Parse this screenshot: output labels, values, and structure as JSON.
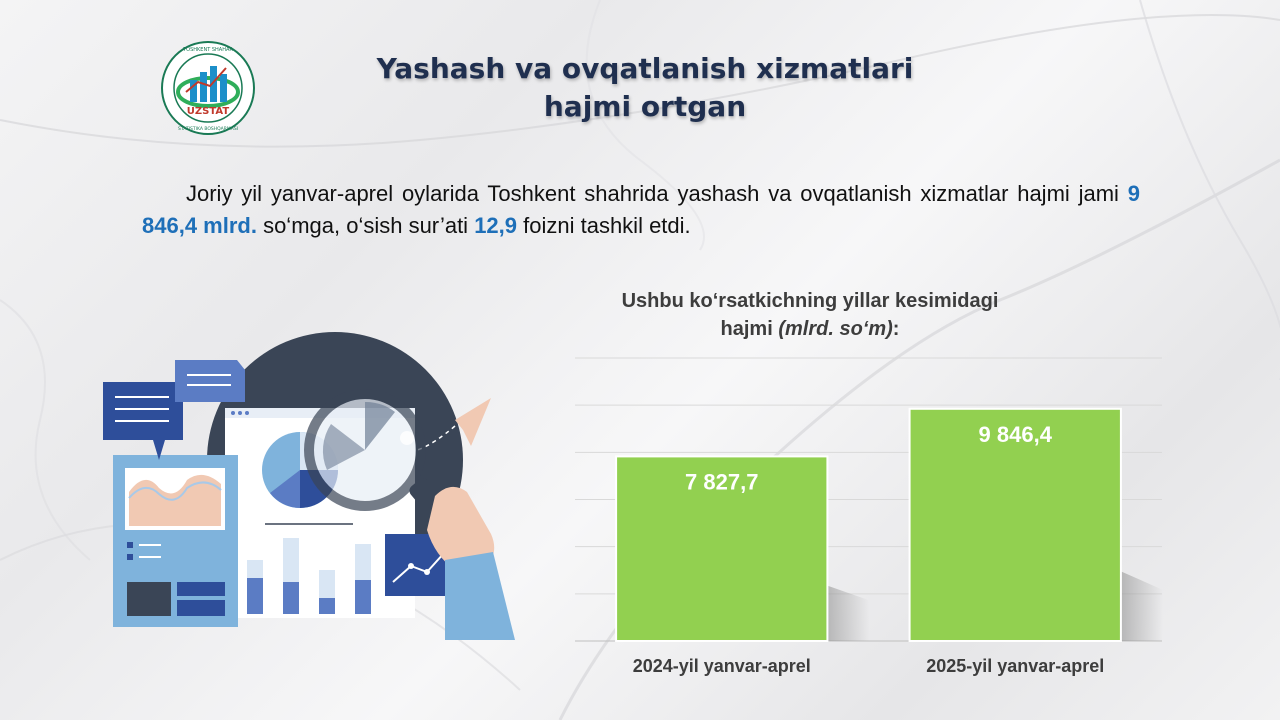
{
  "logo": {
    "text_main": "UZSTAT",
    "text_ring_top": "TOSHKENT SHAHAR",
    "text_ring_bottom": "STATISTIKA BOSHQARMASI",
    "icon": "uzstat-logo-icon",
    "colors": {
      "ring": "#1a7a55",
      "bars": "#1c8fc9",
      "text": "#c0392b"
    }
  },
  "header": {
    "title_line1": "Yashash va ovqatlanish xizmatlari",
    "title_line2": "hajmi ortgan"
  },
  "paragraph": {
    "part1": "Joriy yil yanvar-aprel oylarida Toshkent shahrida yashash va ovqatlanish xizmatlar hajmi jami ",
    "value1": "9 846,4 mlrd.",
    "part2": " so‘mga, o‘sish sur’ati ",
    "value2": "12,9",
    "part3": " foizni tashkil etdi."
  },
  "illustration": {
    "icon": "data-analysis-illustration-icon"
  },
  "chart_data": {
    "type": "bar",
    "title": "Ushbu ko‘rsatkichning yillar kesimidagi hajmi",
    "title_unit": "(mlrd. so‘m)",
    "title_suffix": ":",
    "categories": [
      "2024-yil yanvar-aprel",
      "2025-yil yanvar-aprel"
    ],
    "values": [
      7827.7,
      9846.4
    ],
    "value_labels": [
      "7 827,7",
      "9 846,4"
    ],
    "ylim": [
      0,
      12000
    ],
    "grid": true,
    "legend": "none",
    "bar_color": "#92d050"
  }
}
